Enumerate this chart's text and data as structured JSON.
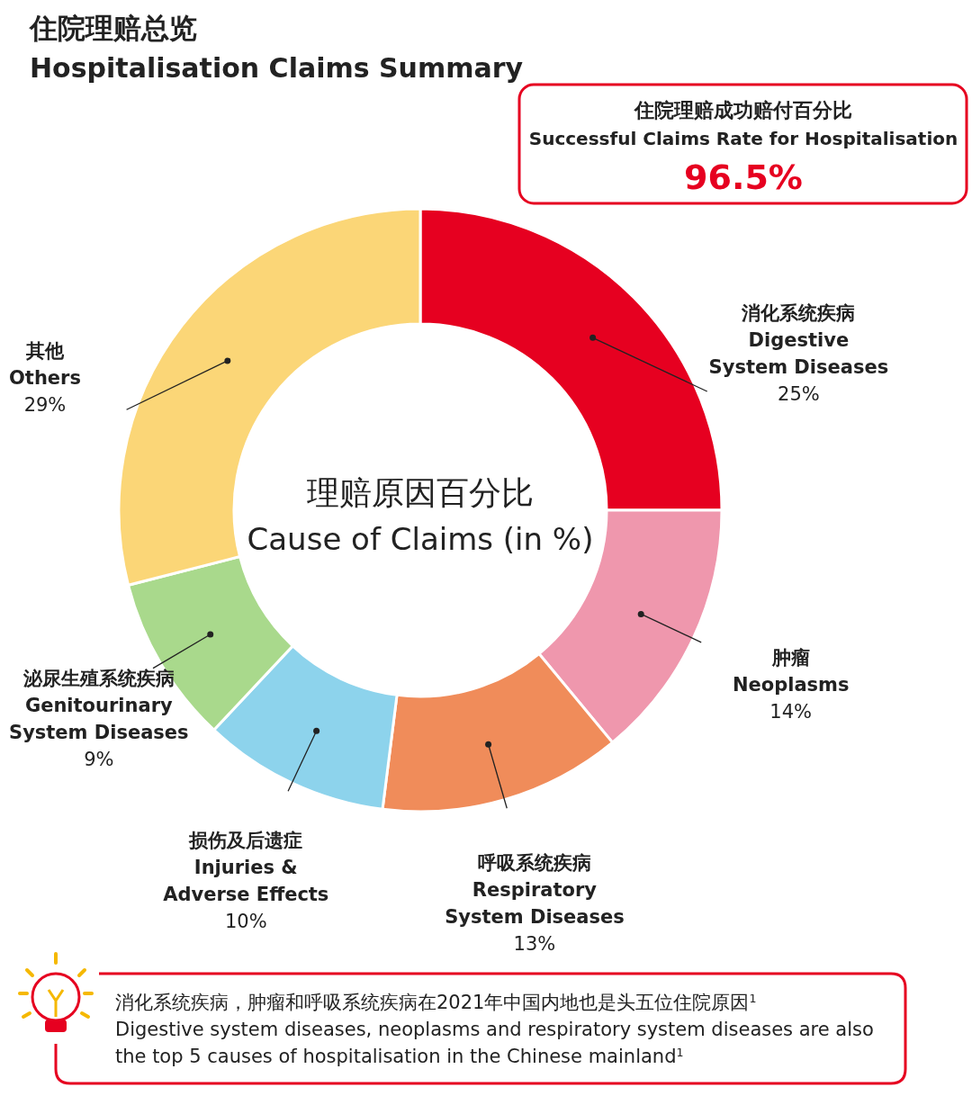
{
  "chart_data": {
    "type": "donut",
    "title": "住院理赔总览",
    "subtitle": "Hospitalisation Claims Summary",
    "categories": [
      "消化系统疾病\nDigestive\nSystem Diseases",
      "肿瘤\nNeoplasms",
      "呼吸系统疾病\nRespiratory\nSystem Diseases",
      "损伤及后遗症\nInjuries &\nAdverse Effects",
      "泌尿生殖系统疾病\nGenitourinary\nSystem Diseases",
      "其他\nOthers"
    ],
    "values": [
      25,
      14,
      13,
      10,
      9,
      29
    ],
    "value_labels": [
      "25%",
      "14%",
      "13%",
      "10%",
      "9%",
      "29%"
    ],
    "colors": [
      "#e60020",
      "#ef97ad",
      "#f08c5a",
      "#8dd3ec",
      "#a9d98c",
      "#fbd677"
    ],
    "annotations": [
      "理赔原因百分比",
      "Cause of Claims (in %)",
      "住院理赔成功赔付百分比",
      "Successful Claims Rate for Hospitalisation",
      "96.5%",
      "消化系统疾病，肿瘤和呼吸系统疾病在2021年中国内地也是头五位住院原因$^{1}$",
      "Digestive system diseases, neoplasms and respiratory system diseases are also",
      "the top 5 causes of hospitalisation in the Chinese mainland$^{1}$"
    ]
  }
}
